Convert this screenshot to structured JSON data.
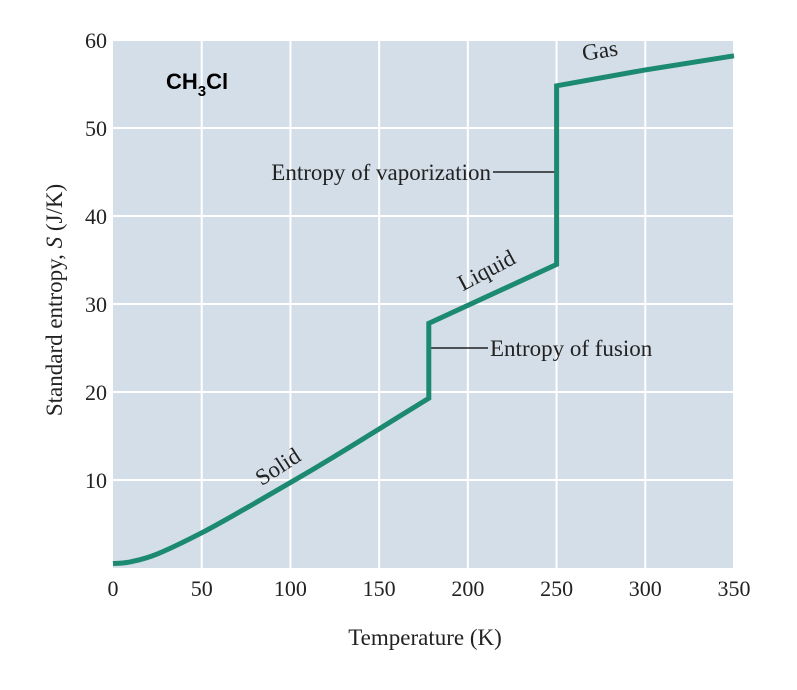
{
  "chart_data": {
    "type": "line",
    "title": "",
    "compound": {
      "prefix": "CH",
      "subscript": "3",
      "suffix": "Cl"
    },
    "xlabel": "Temperature (K)",
    "ylabel_parts": {
      "before": "Standard entropy, ",
      "variable": "S",
      "after": "  (J/K)"
    },
    "xlim": [
      0,
      350
    ],
    "ylim": [
      0,
      60
    ],
    "x_ticks": [
      0,
      50,
      100,
      150,
      200,
      250,
      300,
      350
    ],
    "y_ticks": [
      10,
      20,
      30,
      40,
      50,
      60
    ],
    "grid": true,
    "series": [
      {
        "x": [
          0,
          10,
          25,
          50,
          75,
          100,
          125,
          150,
          178,
          178,
          250,
          250,
          300,
          350
        ],
        "y": [
          0.5,
          0.7,
          1.6,
          4.0,
          6.8,
          9.7,
          12.7,
          15.8,
          19.3,
          27.8,
          34.5,
          54.8,
          56.6,
          58.2
        ]
      }
    ],
    "annotations": [
      {
        "text": "Entropy of vaporization",
        "x": 250,
        "y": 45
      },
      {
        "text": "Entropy of fusion",
        "x": 178,
        "y": 25
      }
    ],
    "phase_labels": [
      "Solid",
      "Liquid",
      "Gas"
    ]
  },
  "colors": {
    "plot_bg": "#d4dee8",
    "grid": "#ffffff",
    "line": "#1c8a70",
    "text": "#222222"
  }
}
